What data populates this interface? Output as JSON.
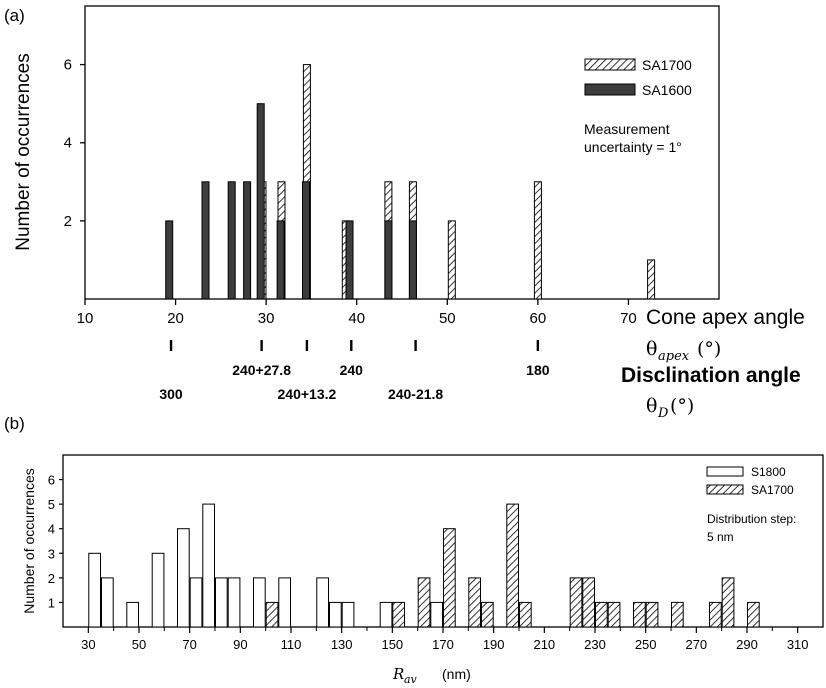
{
  "chart_data": [
    {
      "panel_label": "(a)",
      "type": "bar",
      "ylabel": "Number of occurrences",
      "xlabel": "Cone apex angle",
      "xlabel_symbol": "θ",
      "xlabel_sub": "apex",
      "xlabel_unit": "(°)",
      "xlim": [
        10,
        80
      ],
      "ylim": [
        0,
        7.5
      ],
      "xticks": [
        10,
        20,
        30,
        40,
        50,
        60,
        70
      ],
      "yticks": [
        2,
        4,
        6
      ],
      "series": [
        {
          "name": "SA1700",
          "style": "hatched",
          "x": [
            29.6,
            31.7,
            34.5,
            38.8,
            43.5,
            46.2,
            50.5,
            60.0,
            72.5
          ],
          "values": [
            3,
            3,
            6,
            2,
            3,
            3,
            2,
            3,
            1
          ]
        },
        {
          "name": "SA1600",
          "style": "dark",
          "x": [
            19.3,
            23.3,
            26.2,
            27.9,
            29.4,
            31.6,
            34.4,
            39.2,
            43.5,
            46.2
          ],
          "values": [
            2,
            3,
            3,
            3,
            5,
            2,
            3,
            2,
            2,
            2
          ]
        }
      ],
      "annotation": [
        "Measurement",
        "uncertainty = 1°"
      ],
      "secondary_axis": {
        "title": "Disclination angle",
        "title_symbol": "θ",
        "title_sub": "D",
        "title_unit": "(°)",
        "ticks": [
          {
            "at": 19.5,
            "label": "300",
            "row": 2
          },
          {
            "at": 29.5,
            "label": "240+27.8",
            "row": 1
          },
          {
            "at": 34.5,
            "label": "240+13.2",
            "row": 2
          },
          {
            "at": 39.4,
            "label": "240",
            "row": 1
          },
          {
            "at": 46.5,
            "label": "240-21.8",
            "row": 2
          },
          {
            "at": 60.0,
            "label": "180",
            "row": 1
          }
        ]
      }
    },
    {
      "panel_label": "(b)",
      "type": "bar",
      "ylabel": "Number of occurrences",
      "xlabel_symbol": "R",
      "xlabel_sub": "av",
      "xlabel_unit": "(nm)",
      "xlim": [
        20,
        320
      ],
      "ylim": [
        0,
        7
      ],
      "xticks": [
        30,
        50,
        70,
        90,
        110,
        130,
        150,
        170,
        190,
        210,
        230,
        250,
        270,
        290,
        310
      ],
      "yticks": [
        1,
        2,
        3,
        4,
        5,
        6
      ],
      "series": [
        {
          "name": "S1800",
          "style": "open",
          "x": [
            32.5,
            37.5,
            47.5,
            57.5,
            67.5,
            72.5,
            77.5,
            82.5,
            87.5,
            97.5,
            107.5,
            122.5,
            127.5,
            132.5,
            147.5,
            167.5
          ],
          "values": [
            3,
            2,
            1,
            3,
            4,
            2,
            5,
            2,
            2,
            2,
            2,
            2,
            1,
            1,
            1,
            1
          ]
        },
        {
          "name": "SA1700",
          "style": "hatched",
          "x": [
            102.5,
            152.5,
            162.5,
            172.5,
            182.5,
            187.5,
            197.5,
            202.5,
            222.5,
            227.5,
            232.5,
            237.5,
            247.5,
            252.5,
            262.5,
            277.5,
            282.5,
            292.5
          ],
          "values": [
            1,
            1,
            2,
            4,
            2,
            1,
            5,
            1,
            2,
            2,
            1,
            1,
            1,
            1,
            1,
            1,
            2,
            1
          ]
        }
      ],
      "annotation": [
        "Distribution step:",
        "5 nm"
      ]
    }
  ]
}
